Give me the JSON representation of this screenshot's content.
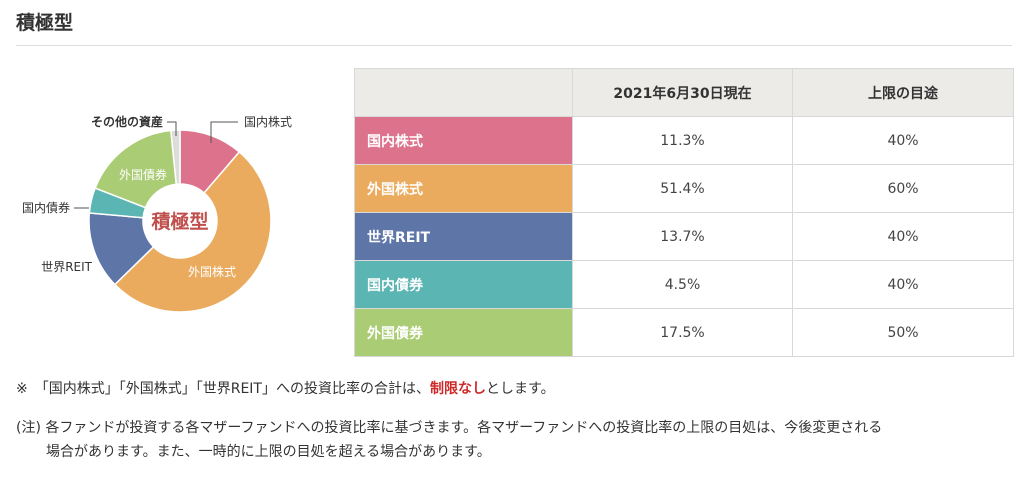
{
  "section_title": "積極型",
  "chart_data": {
    "type": "pie",
    "variant": "donut",
    "center_label": "積極型",
    "slices": [
      {
        "name": "国内株式",
        "value": 11.3,
        "color": "#dc728c",
        "label_position": "outside"
      },
      {
        "name": "外国株式",
        "value": 51.4,
        "color": "#ebab5e",
        "label_position": "inside"
      },
      {
        "name": "世界REIT",
        "value": 13.7,
        "color": "#5e75a8",
        "label_position": "outside"
      },
      {
        "name": "国内債券",
        "value": 4.5,
        "color": "#5bb5b3",
        "label_position": "outside"
      },
      {
        "name": "外国債券",
        "value": 17.5,
        "color": "#a9cc74",
        "label_position": "inside"
      },
      {
        "name": "その他の資産",
        "value": 1.6,
        "color": "#dcdcd8",
        "label_position": "outside"
      }
    ]
  },
  "table": {
    "headers": [
      "",
      "2021年6月30日現在",
      "上限の目途"
    ],
    "rows": [
      {
        "label": "国内株式",
        "color": "#dc728c",
        "current": "11.3%",
        "limit": "40%"
      },
      {
        "label": "外国株式",
        "color": "#ebab5e",
        "current": "51.4%",
        "limit": "60%"
      },
      {
        "label": "世界REIT",
        "color": "#5e75a8",
        "current": "13.7%",
        "limit": "40%"
      },
      {
        "label": "国内債券",
        "color": "#5bb5b3",
        "current": "4.5%",
        "limit": "40%"
      },
      {
        "label": "外国債券",
        "color": "#a9cc74",
        "current": "17.5%",
        "limit": "50%"
      }
    ]
  },
  "notes": {
    "note1_prefix": "※　「国内株式」「外国株式」「世界REIT」への投資比率の合計は、",
    "note1_emphasis": "制限なし",
    "note1_suffix": "とします。",
    "note2_line1": "(注) 各ファンドが投資する各マザーファンドへの投資比率に基づきます。各マザーファンドへの投資比率の上限の目処は、今後変更される",
    "note2_line2": "場合があります。また、一時的に上限の目処を超える場合があります。"
  }
}
